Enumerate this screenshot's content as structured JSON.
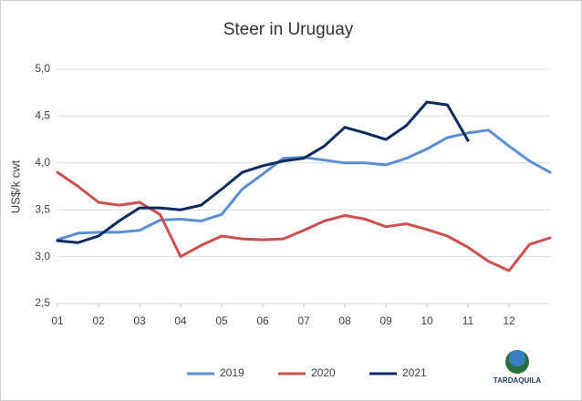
{
  "chart_data": {
    "type": "line",
    "title": "Steer in Uruguay",
    "y_label": "US$/k cwt",
    "logo": "TARDAQUILA",
    "x": [
      1,
      1.5,
      2,
      2.5,
      3,
      3.5,
      4,
      4.5,
      5,
      5.5,
      6,
      6.5,
      7,
      7.5,
      8,
      8.5,
      9,
      9.5,
      10,
      10.5,
      11,
      11.5,
      12,
      12.5,
      13
    ],
    "xlim": [
      1,
      13
    ],
    "xticks": [
      {
        "value": 1,
        "label": "01"
      },
      {
        "value": 2,
        "label": "02"
      },
      {
        "value": 3,
        "label": "03"
      },
      {
        "value": 4,
        "label": "04"
      },
      {
        "value": 5,
        "label": "05"
      },
      {
        "value": 6,
        "label": "06"
      },
      {
        "value": 7,
        "label": "07"
      },
      {
        "value": 8,
        "label": "08"
      },
      {
        "value": 9,
        "label": "09"
      },
      {
        "value": 10,
        "label": "10"
      },
      {
        "value": 11,
        "label": "11"
      },
      {
        "value": 12,
        "label": "12"
      }
    ],
    "ylim": [
      2.5,
      5.0
    ],
    "yticks": [
      {
        "value": 2.5,
        "label": "2,5"
      },
      {
        "value": 3.0,
        "label": "3,0"
      },
      {
        "value": 3.5,
        "label": "3,5"
      },
      {
        "value": 4.0,
        "label": "4,0"
      },
      {
        "value": 4.5,
        "label": "4,5"
      },
      {
        "value": 5.0,
        "label": "5,0"
      }
    ],
    "grid": true,
    "legend": "bottom",
    "series": [
      {
        "name": "2019",
        "color": "#5b8fd1",
        "values": [
          3.18,
          3.25,
          3.26,
          3.26,
          3.28,
          3.39,
          3.4,
          3.38,
          3.45,
          3.72,
          3.88,
          4.05,
          4.06,
          4.03,
          4.0,
          4.0,
          3.98,
          4.05,
          4.15,
          4.27,
          4.32,
          4.35,
          4.18,
          4.02,
          3.9
        ]
      },
      {
        "name": "2020",
        "color": "#cc5050",
        "values": [
          3.9,
          3.75,
          3.58,
          3.55,
          3.58,
          3.45,
          3.0,
          3.12,
          3.22,
          3.19,
          3.18,
          3.19,
          3.28,
          3.38,
          3.44,
          3.4,
          3.32,
          3.35,
          3.29,
          3.22,
          3.1,
          2.95,
          2.85,
          3.13,
          3.2
        ]
      },
      {
        "name": "2021",
        "color": "#0f2a5c",
        "values": [
          3.17,
          3.15,
          3.22,
          3.38,
          3.52,
          3.52,
          3.5,
          3.55,
          3.72,
          3.9,
          3.97,
          4.02,
          4.05,
          4.18,
          4.38,
          4.32,
          4.25,
          4.4,
          4.65,
          4.62,
          4.24,
          null,
          null,
          null,
          null
        ]
      }
    ]
  }
}
